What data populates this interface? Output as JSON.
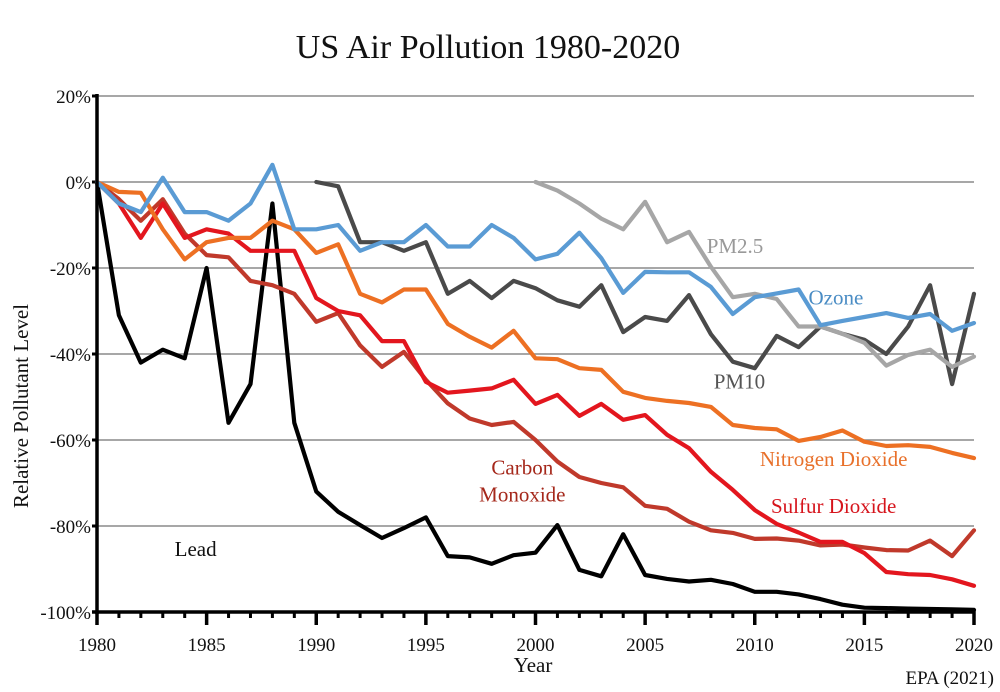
{
  "chart_data": {
    "type": "line",
    "title": "US Air Pollution 1980-2020",
    "xlabel": "Year",
    "ylabel": "Relative Pollutant Level",
    "source": "EPA (2021)",
    "xlim": [
      1980,
      2020
    ],
    "ylim": [
      -100,
      20
    ],
    "grid": true,
    "x_ticks": [
      1980,
      1985,
      1990,
      1995,
      2000,
      2005,
      2010,
      2015,
      2020
    ],
    "x_tick_labels": [
      "1980",
      "1985",
      "1990",
      "1995",
      "2000",
      "2005",
      "2010",
      "2015",
      "2020"
    ],
    "y_ticks": [
      20,
      0,
      -20,
      -40,
      -60,
      -80,
      -100
    ],
    "y_tick_labels": [
      "20%",
      "0%",
      "-20%",
      "-40%",
      "-60%",
      "-80%",
      "-100%"
    ],
    "legend": "inline-labels",
    "series": [
      {
        "name": "Lead",
        "label": "Lead",
        "color": "#000000",
        "label_color": "#111111",
        "label_at": [
          1984.5,
          -87
        ],
        "start": 1980,
        "values": [
          0,
          -31,
          -42,
          -39,
          -41,
          -20,
          -56,
          -47,
          -5,
          -56,
          -72,
          -76.7,
          -79.8,
          -82.8,
          -80.5,
          -78,
          -87,
          -87.3,
          -88.8,
          -86.8,
          -86.2,
          -79.8,
          -90.2,
          -91.7,
          -81.9,
          -91.4,
          -92.3,
          -92.9,
          -92.5,
          -93.5,
          -95.3,
          -95.3,
          -95.9,
          -97,
          -98.3,
          -99,
          -99.1,
          -99.2,
          -99.3,
          -99.4,
          -99.5
        ]
      },
      {
        "name": "Carbon Monoxide",
        "label_lines": [
          "Carbon",
          "Monoxide"
        ],
        "color": "#c0392b",
        "label_color": "#a5281b",
        "label_at": [
          1999.4,
          -68
        ],
        "start": 1980,
        "values": [
          0,
          -4,
          -9,
          -4,
          -12,
          -17,
          -17.5,
          -23,
          -24,
          -26,
          -32.5,
          -30.5,
          -38,
          -43,
          -39.5,
          -46,
          -51.5,
          -55,
          -56.5,
          -55.8,
          -60,
          -65,
          -68.6,
          -70,
          -71,
          -75.3,
          -76,
          -79,
          -81,
          -81.6,
          -83,
          -82.9,
          -83.4,
          -84.5,
          -84.3,
          -85,
          -85.6,
          -85.7,
          -83.4,
          -87,
          -81
        ]
      },
      {
        "name": "Sulfur Dioxide",
        "label": "Sulfur Dioxide",
        "color": "#e3161e",
        "label_color": "#d6141c",
        "label_at": [
          2013.6,
          -77
        ],
        "start": 1980,
        "values": [
          0,
          -5,
          -13,
          -5,
          -13,
          -11,
          -12,
          -16,
          -16,
          -16,
          -27,
          -30,
          -31,
          -37,
          -37,
          -46.5,
          -49,
          -48.5,
          -48,
          -46,
          -51.6,
          -49.5,
          -54.4,
          -51.6,
          -55.3,
          -54.2,
          -58.8,
          -61.9,
          -67.4,
          -71.6,
          -76.3,
          -79.5,
          -81.5,
          -83.7,
          -83.7,
          -86.3,
          -90.7,
          -91.2,
          -91.4,
          -92.4,
          -93.9
        ]
      },
      {
        "name": "Nitrogen Dioxide",
        "label": "Nitrogen Dioxide",
        "color": "#ed7023",
        "label_color": "#e8702a",
        "label_at": [
          2013.6,
          -66
        ],
        "start": 1980,
        "values": [
          0,
          -2.3,
          -2.5,
          -11,
          -18,
          -14,
          -13,
          -13,
          -9,
          -11,
          -16.5,
          -14.5,
          -26,
          -28,
          -25,
          -25,
          -33,
          -36,
          -38.5,
          -34.6,
          -41,
          -41.2,
          -43.3,
          -43.7,
          -48.8,
          -50.2,
          -50.9,
          -51.4,
          -52.3,
          -56.5,
          -57.2,
          -57.5,
          -60.2,
          -59.3,
          -57.8,
          -60.4,
          -61.4,
          -61.2,
          -61.6,
          -63,
          -64.2
        ]
      },
      {
        "name": "PM10",
        "label": "PM10",
        "color": "#4a4a4a",
        "label_color": "#555555",
        "label_at": [
          2009.3,
          -48
        ],
        "start": 1990,
        "values": [
          0,
          -1,
          -14,
          -14,
          -16,
          -14,
          -26,
          -23,
          -27,
          -23,
          -24.7,
          -27.5,
          -29,
          -24,
          -34.9,
          -31.4,
          -32.3,
          -26.3,
          -35.4,
          -41.8,
          -43.3,
          -35.8,
          -38.4,
          -33.6,
          -35.3,
          -36.7,
          -40,
          -33.6,
          -24,
          -47,
          -26
        ]
      },
      {
        "name": "PM2.5",
        "label": "PM2.5",
        "color": "#a6a6a6",
        "label_color": "#999999",
        "label_at": [
          2009.1,
          -16.5
        ],
        "start": 2000,
        "values": [
          0,
          -2,
          -5,
          -8.5,
          -11,
          -4.6,
          -14,
          -11.6,
          -19.7,
          -26.8,
          -26,
          -27.2,
          -33.6,
          -33.6,
          -35.3,
          -37.4,
          -42.7,
          -40.2,
          -39,
          -43,
          -40.6
        ]
      },
      {
        "name": "Ozone",
        "label": "Ozone",
        "color": "#5a9bd4",
        "label_color": "#4a8cc4",
        "label_at": [
          2013.7,
          -28.5
        ],
        "start": 1980,
        "values": [
          0,
          -5,
          -7,
          1,
          -7,
          -7,
          -9,
          -5,
          4,
          -11,
          -11,
          -10,
          -16,
          -14,
          -14,
          -10,
          -15,
          -15,
          -10,
          -13,
          -18,
          -16.7,
          -11.8,
          -17.7,
          -25.8,
          -20.9,
          -21,
          -21,
          -24.4,
          -30.7,
          -26.8,
          -25.9,
          -25,
          -33.3,
          -32.3,
          -31.4,
          -30.5,
          -31.6,
          -30.7,
          -34.6,
          -32.8
        ]
      }
    ]
  }
}
